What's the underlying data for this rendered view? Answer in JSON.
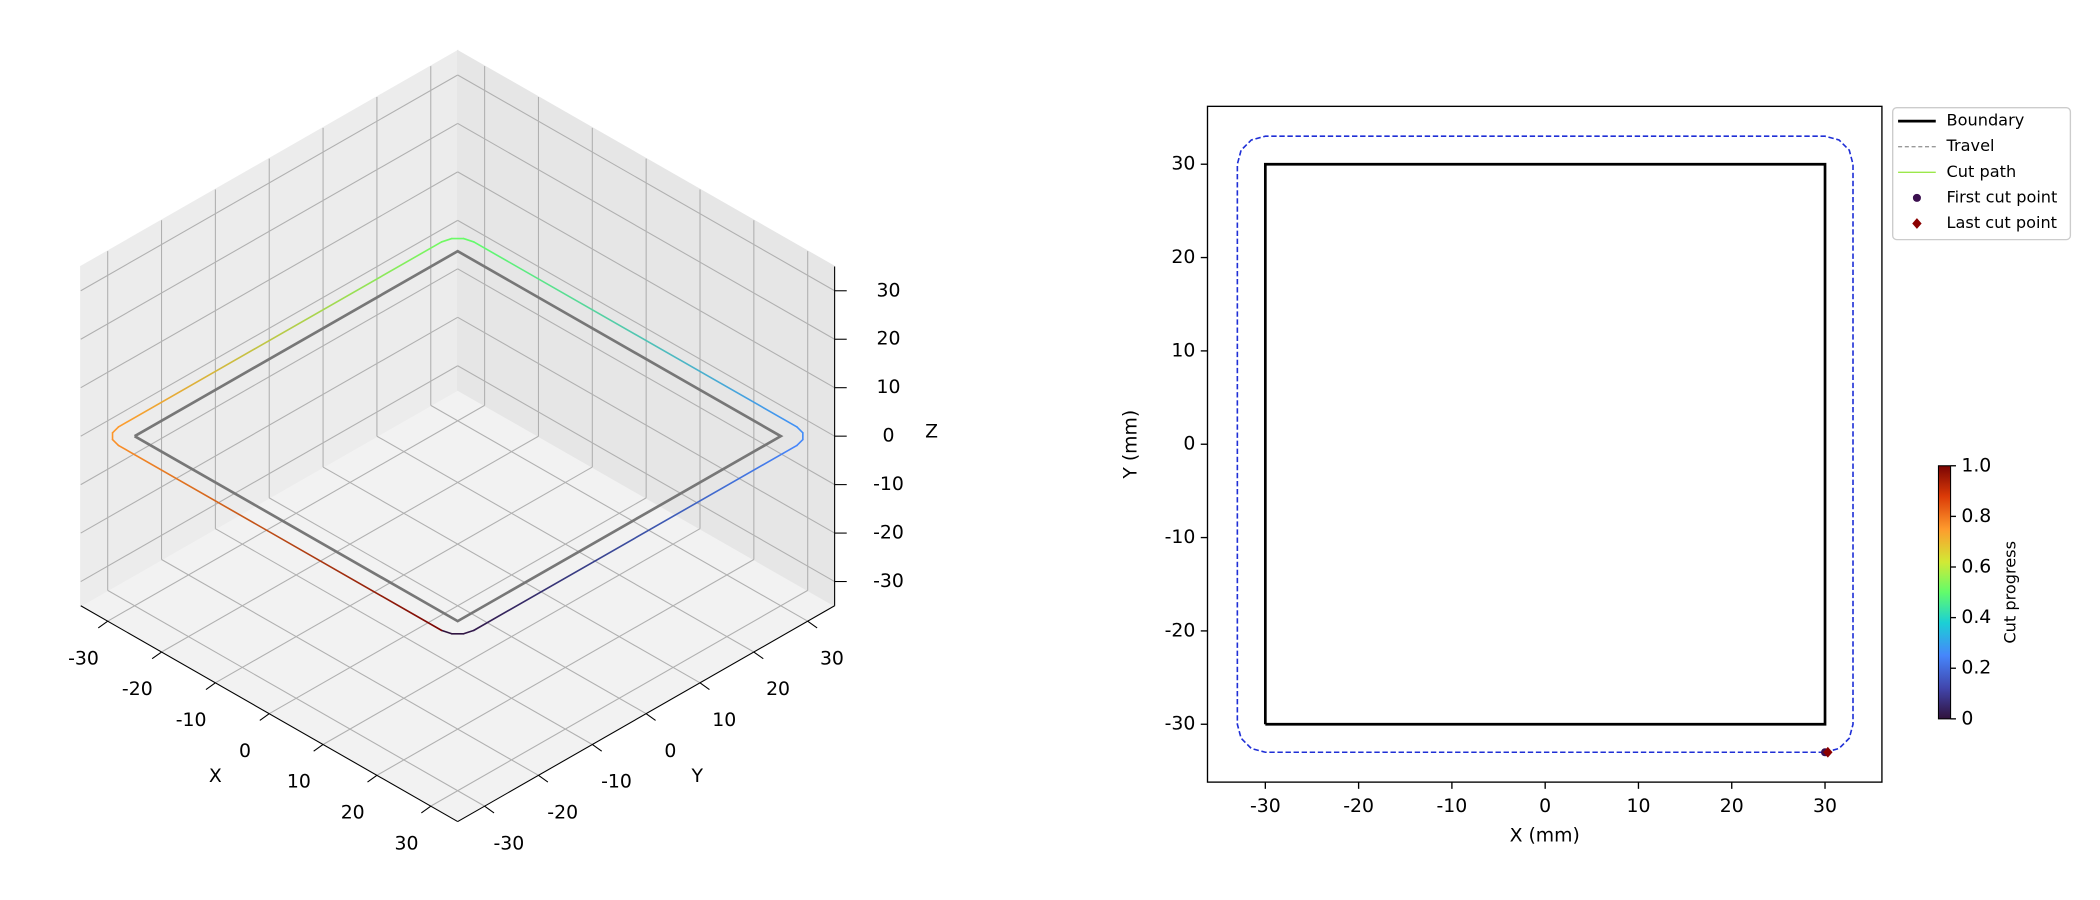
{
  "chart_data": [
    {
      "type": "line3d",
      "xlabel": "X",
      "ylabel": "Y",
      "zlabel": "Z",
      "xlim": [
        -35,
        35
      ],
      "ylim": [
        -35,
        35
      ],
      "zlim": [
        -35,
        35
      ],
      "xticks": [
        -30,
        -20,
        -10,
        0,
        10,
        20,
        30
      ],
      "yticks": [
        -30,
        -20,
        -10,
        0,
        10,
        20,
        30
      ],
      "zticks": [
        -30,
        -20,
        -10,
        0,
        10,
        20,
        30
      ],
      "grid": true,
      "colormap": "turbo",
      "series": [
        {
          "name": "Boundary",
          "color": "#777777",
          "x": [
            -30,
            30,
            30,
            -30,
            -30
          ],
          "y": [
            -30,
            -30,
            30,
            30,
            -30
          ],
          "z": [
            0,
            0,
            0,
            0,
            0
          ]
        },
        {
          "name": "Cut path",
          "x": [
            30,
            31.5,
            32.6,
            33,
            33,
            32.6,
            31.5,
            30,
            -30,
            -31.5,
            -32.6,
            -33,
            -33,
            -32.6,
            -31.5,
            -30,
            30
          ],
          "y": [
            -33,
            -32.6,
            -31.5,
            -30,
            30,
            31.5,
            32.6,
            33,
            33,
            32.6,
            31.5,
            30,
            -30,
            -31.5,
            -32.6,
            -33,
            -33
          ],
          "z": [
            0,
            0,
            0,
            0,
            0,
            0,
            0,
            0,
            0,
            0,
            0,
            0,
            0,
            0,
            0,
            0,
            0
          ]
        }
      ]
    },
    {
      "type": "line",
      "xlabel": "X (mm)",
      "ylabel": "Y (mm)",
      "xlim": [
        -36.2,
        36.1
      ],
      "ylim": [
        -36.2,
        36.2
      ],
      "xticks": [
        -30,
        -20,
        -10,
        0,
        10,
        20,
        30
      ],
      "yticks": [
        -30,
        -20,
        -10,
        0,
        10,
        20,
        30
      ],
      "legend": "outside-upper-right",
      "series": [
        {
          "name": "Boundary",
          "color": "#000000",
          "x": [
            -30,
            30,
            30,
            -30,
            -30
          ],
          "y": [
            -30,
            -30,
            30,
            30,
            -30
          ]
        },
        {
          "name": "Travel",
          "color": "#999999",
          "dash": true
        },
        {
          "name": "Cut path",
          "color": "#9be84a",
          "line_color": "#1f2fd6",
          "dash": true,
          "x": [
            30,
            31.5,
            32.6,
            33,
            33,
            32.6,
            31.5,
            30,
            -30,
            -31.5,
            -32.6,
            -33,
            -33,
            -32.6,
            -31.5,
            -30,
            30
          ],
          "y": [
            -33,
            -32.6,
            -31.5,
            -30,
            30,
            31.5,
            32.6,
            33,
            33,
            32.6,
            31.5,
            30,
            -30,
            -31.5,
            -32.6,
            -33,
            -33
          ]
        },
        {
          "name": "First cut point",
          "color": "#3b0f4f",
          "marker": "circle",
          "x": [
            30
          ],
          "y": [
            -33
          ]
        },
        {
          "name": "Last cut point",
          "color": "#8b0000",
          "marker": "diamond",
          "x": [
            30.3
          ],
          "y": [
            -33
          ]
        }
      ],
      "colorbar": {
        "label": "Cut progress",
        "colormap": "turbo",
        "lim": [
          0,
          1
        ],
        "ticks": [
          0,
          0.2,
          0.4,
          0.6,
          0.8,
          {
            "value": 1,
            "label": "1.0"
          }
        ]
      }
    }
  ]
}
